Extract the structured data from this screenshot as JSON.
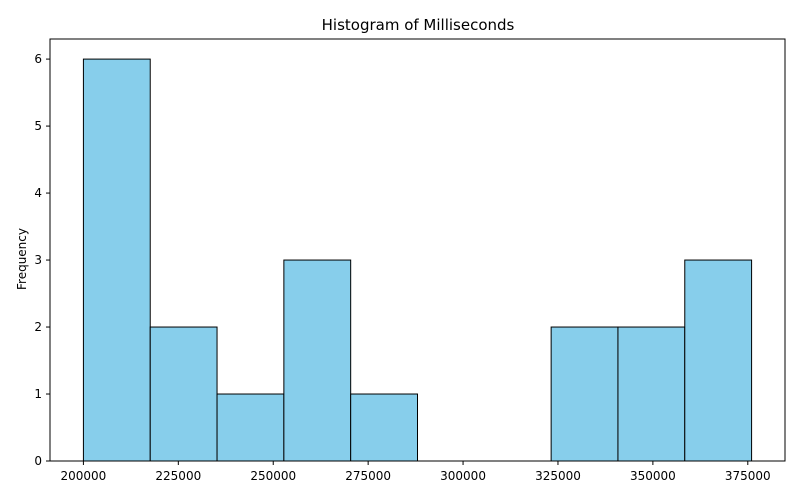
{
  "chart_data": {
    "type": "bar",
    "title": "Histogram of Milliseconds",
    "xlabel": "",
    "ylabel": "Frequency",
    "bin_edges": [
      200000,
      217600,
      235200,
      252800,
      270400,
      288000,
      305600,
      323200,
      340800,
      358400,
      376000
    ],
    "values": [
      6,
      2,
      1,
      3,
      1,
      0,
      0,
      2,
      2,
      3
    ],
    "xlim": [
      191200,
      384800
    ],
    "ylim": [
      0,
      6.3
    ],
    "xticks": [
      200000,
      225000,
      250000,
      275000,
      300000,
      325000,
      350000,
      375000
    ],
    "xtick_labels": [
      "200000",
      "225000",
      "250000",
      "275000",
      "300000",
      "325000",
      "350000",
      "375000"
    ],
    "yticks": [
      0,
      1,
      2,
      3,
      4,
      5,
      6
    ],
    "ytick_labels": [
      "0",
      "1",
      "2",
      "3",
      "4",
      "5",
      "6"
    ],
    "grid": false,
    "legend": "none",
    "colors": {
      "bar_fill": "#87ceeb",
      "bar_edge": "#000000"
    }
  }
}
